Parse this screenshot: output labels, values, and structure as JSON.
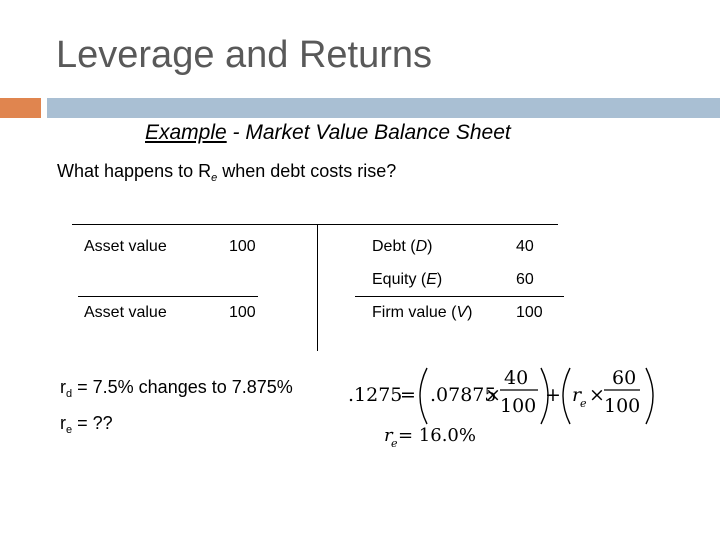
{
  "slide": {
    "title": "Leverage and Returns",
    "subtitle_example": "Example",
    "subtitle_rest": " - Market Value Balance Sheet",
    "question_pre": "What happens to R",
    "question_sub": "e",
    "question_post": " when debt costs rise?"
  },
  "balance_sheet": {
    "left_rows": [
      {
        "label": "Asset value",
        "value": "100"
      },
      {
        "label": "Asset value",
        "value": "100"
      }
    ],
    "right_rows": [
      {
        "label_pre": "Debt (",
        "label_var": "D",
        "label_post": ")",
        "value": "40"
      },
      {
        "label_pre": "Equity (",
        "label_var": "E",
        "label_post": ")",
        "value": "60"
      },
      {
        "label_pre": "Firm value (",
        "label_var": "V",
        "label_post": ")",
        "value": "100"
      }
    ]
  },
  "rates": {
    "rd_var": "r",
    "rd_sub": "d",
    "rd_text": " =  7.5%  changes to 7.875%",
    "re_var": "r",
    "re_sub": "e",
    "re_text": " = ??"
  },
  "formula": {
    "lhs": ".1275",
    "eq": "=",
    "rd": ".07875",
    "times": "×",
    "d_num": "40",
    "d_den": "100",
    "plus": "+",
    "re_var": "r",
    "re_sub": "e",
    "e_num": "60",
    "e_den": "100",
    "result_var": "r",
    "result_sub": "e",
    "result_text": " = 16.0%"
  }
}
